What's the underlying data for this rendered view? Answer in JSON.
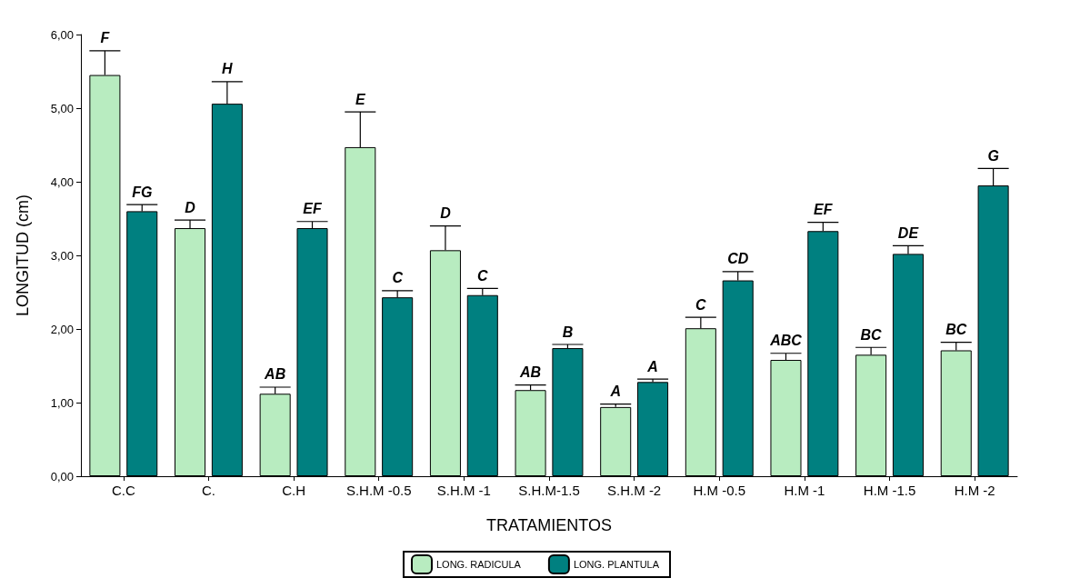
{
  "chart_data": {
    "type": "bar",
    "xlabel": "TRATAMIENTOS",
    "ylabel": "LONGITUD (cm)",
    "categories": [
      "C.C",
      "C.",
      "C.H",
      "S.H.M -0.5",
      "S.H.M -1",
      "S.H.M-1.5",
      "S.H.M -2",
      "H.M -0.5",
      "H.M -1",
      "H.M -1.5",
      "H.M -2"
    ],
    "series": [
      {
        "name": "LONG. RADICULA",
        "color": "#b8ecc0",
        "values": [
          5.45,
          3.37,
          1.12,
          4.47,
          3.07,
          1.17,
          0.94,
          2.01,
          1.58,
          1.65,
          1.71
        ],
        "errors": [
          [
            5.45,
            5.78
          ],
          [
            3.37,
            3.48
          ],
          [
            1.12,
            1.21
          ],
          [
            4.47,
            4.95
          ],
          [
            3.07,
            3.4
          ],
          [
            1.17,
            1.24
          ],
          [
            0.94,
            0.98
          ],
          [
            2.01,
            2.16
          ],
          [
            1.58,
            1.67
          ],
          [
            1.65,
            1.75
          ],
          [
            1.71,
            1.82
          ]
        ],
        "value_labels": [
          "F",
          "D",
          "AB",
          "E",
          "D",
          "AB",
          "A",
          "C",
          "ABC",
          "BC",
          "BC"
        ]
      },
      {
        "name": "LONG. PLANTULA",
        "color": "#008080",
        "values": [
          3.6,
          5.06,
          3.37,
          2.43,
          2.46,
          1.74,
          1.28,
          2.66,
          3.33,
          3.02,
          3.95
        ],
        "errors": [
          [
            3.6,
            3.69
          ],
          [
            5.06,
            5.36
          ],
          [
            3.37,
            3.46
          ],
          [
            2.43,
            2.52
          ],
          [
            2.46,
            2.55
          ],
          [
            1.74,
            1.79
          ],
          [
            1.28,
            1.32
          ],
          [
            2.66,
            2.78
          ],
          [
            3.33,
            3.45
          ],
          [
            3.02,
            3.13
          ],
          [
            3.95,
            4.18
          ]
        ],
        "value_labels": [
          "FG",
          "H",
          "EF",
          "C",
          "C",
          "B",
          "A",
          "CD",
          "EF",
          "DE",
          "G"
        ]
      }
    ],
    "ylim": [
      0,
      6
    ],
    "yticks": [
      {
        "value": 0,
        "label": "0,00"
      },
      {
        "value": 1,
        "label": "1,00"
      },
      {
        "value": 2,
        "label": "2,00"
      },
      {
        "value": 3,
        "label": "3,00"
      },
      {
        "value": 4,
        "label": "4,00"
      },
      {
        "value": 5,
        "label": "5,00"
      },
      {
        "value": 6,
        "label": "6,00"
      }
    ],
    "grid": false,
    "legend": "bottom"
  }
}
